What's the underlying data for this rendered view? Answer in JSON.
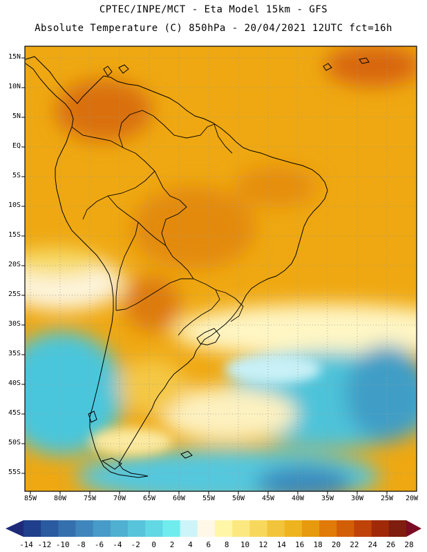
{
  "title_line1": "CPTEC/INPE/MCT -  Eta Model 15km - GFS",
  "title_line2": "Absolute Temperature (C) 850hPa - 20/04/2021 12UTC fct=16h",
  "lat_labels": [
    "15N",
    "10N",
    "5N",
    "EQ",
    "5S",
    "10S",
    "15S",
    "20S",
    "25S",
    "30S",
    "35S",
    "40S",
    "45S",
    "50S",
    "55S"
  ],
  "lon_labels": [
    "85W",
    "80W",
    "75W",
    "70W",
    "65W",
    "60W",
    "55W",
    "50W",
    "45W",
    "40W",
    "35W",
    "30W",
    "25W",
    "20W"
  ],
  "colorbar": {
    "labels": [
      "-14",
      "-12",
      "-10",
      "-8",
      "-6",
      "-4",
      "-2",
      "0",
      "2",
      "4",
      "6",
      "8",
      "10",
      "12",
      "14",
      "16",
      "18",
      "20",
      "22",
      "24",
      "26",
      "28"
    ],
    "colors": [
      "#1f3f8c",
      "#2a5aa0",
      "#3570ae",
      "#3f86bc",
      "#479bc8",
      "#4fb0d2",
      "#58c4db",
      "#62d8e4",
      "#70ecee",
      "#cdf4f8",
      "#fff8e6",
      "#fff6a8",
      "#fbe880",
      "#f7d85c",
      "#f2c43c",
      "#eeb420",
      "#e79a0e",
      "#e07a08",
      "#d35e08",
      "#bf4208",
      "#a02a08",
      "#7f1d0e"
    ],
    "left_arrow_color": "#1e2a78",
    "right_arrow_color": "#7a0c24"
  }
}
